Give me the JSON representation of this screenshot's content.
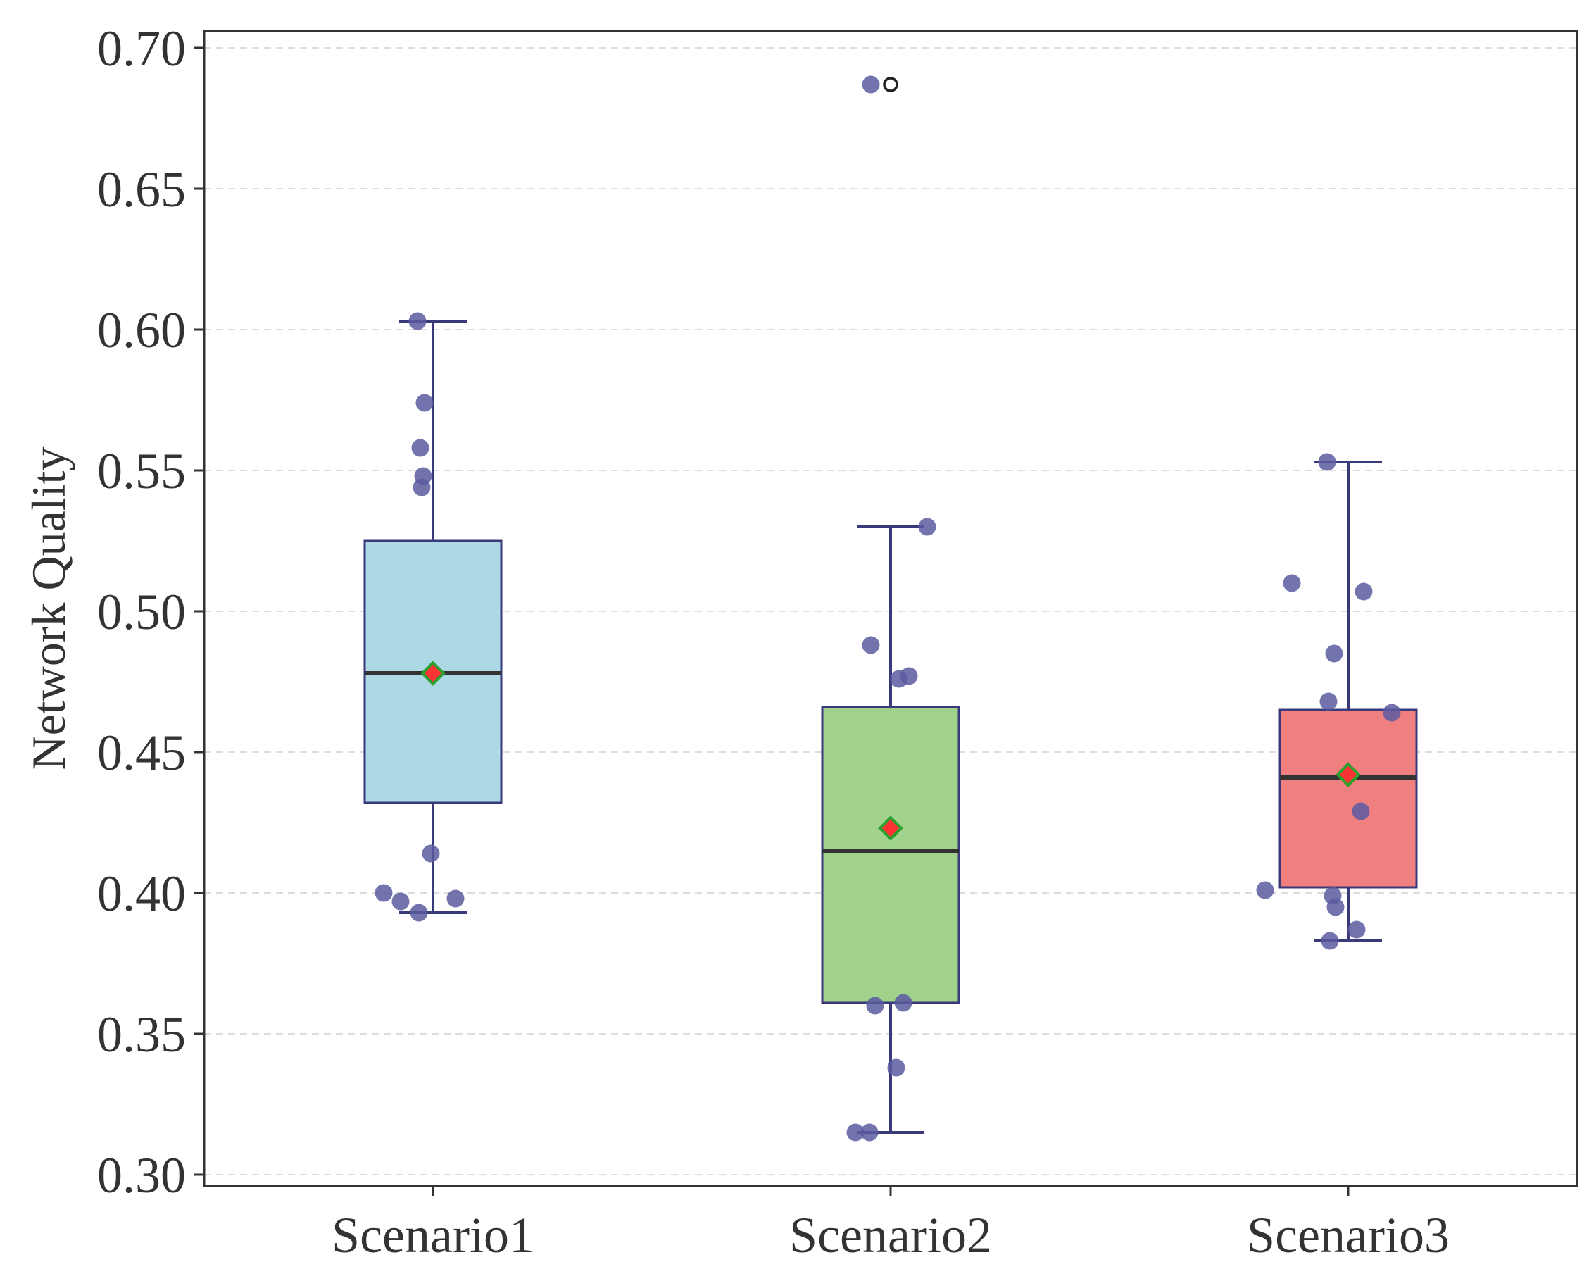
{
  "chart_data": {
    "type": "box",
    "title": "",
    "xlabel": "",
    "ylabel": "Network Quality",
    "ylim": [
      0.296,
      0.706
    ],
    "yticks": [
      "0.30",
      "0.35",
      "0.40",
      "0.45",
      "0.50",
      "0.55",
      "0.60",
      "0.65",
      "0.70"
    ],
    "ytick_values": [
      0.3,
      0.35,
      0.4,
      0.45,
      0.5,
      0.55,
      0.6,
      0.65,
      0.7
    ],
    "grid": "horizontal dashed",
    "categories": [
      "Scenario1",
      "Scenario2",
      "Scenario3"
    ],
    "boxes": [
      {
        "category": "Scenario1",
        "color": "#add8e6",
        "whisker_low": 0.393,
        "q1": 0.432,
        "median": 0.478,
        "q3": 0.525,
        "whisker_high": 0.603,
        "mean": 0.478,
        "outliers": [],
        "points": [
          0.603,
          0.574,
          0.558,
          0.548,
          0.544,
          0.414,
          0.4,
          0.397,
          0.393,
          0.398
        ]
      },
      {
        "category": "Scenario2",
        "color": "#a0d28c",
        "whisker_low": 0.315,
        "q1": 0.361,
        "median": 0.415,
        "q3": 0.466,
        "whisker_high": 0.53,
        "mean": 0.423,
        "outliers": [
          0.687
        ],
        "points": [
          0.687,
          0.53,
          0.488,
          0.476,
          0.477,
          0.361,
          0.36,
          0.338,
          0.315,
          0.315
        ]
      },
      {
        "category": "Scenario3",
        "color": "#f08080",
        "whisker_low": 0.383,
        "q1": 0.402,
        "median": 0.441,
        "q3": 0.465,
        "whisker_high": 0.553,
        "mean": 0.442,
        "outliers": [],
        "points": [
          0.553,
          0.51,
          0.507,
          0.485,
          0.468,
          0.464,
          0.429,
          0.401,
          0.399,
          0.395,
          0.387,
          0.383
        ]
      }
    ],
    "colors": {
      "box_edge": "#3a3a7a",
      "median_line": "#333333",
      "point_fill": "#5a5aa0",
      "mean_fill": "#ff3333",
      "mean_edge": "#2ca02c",
      "grid": "#dddddd",
      "axis": "#333333"
    }
  }
}
